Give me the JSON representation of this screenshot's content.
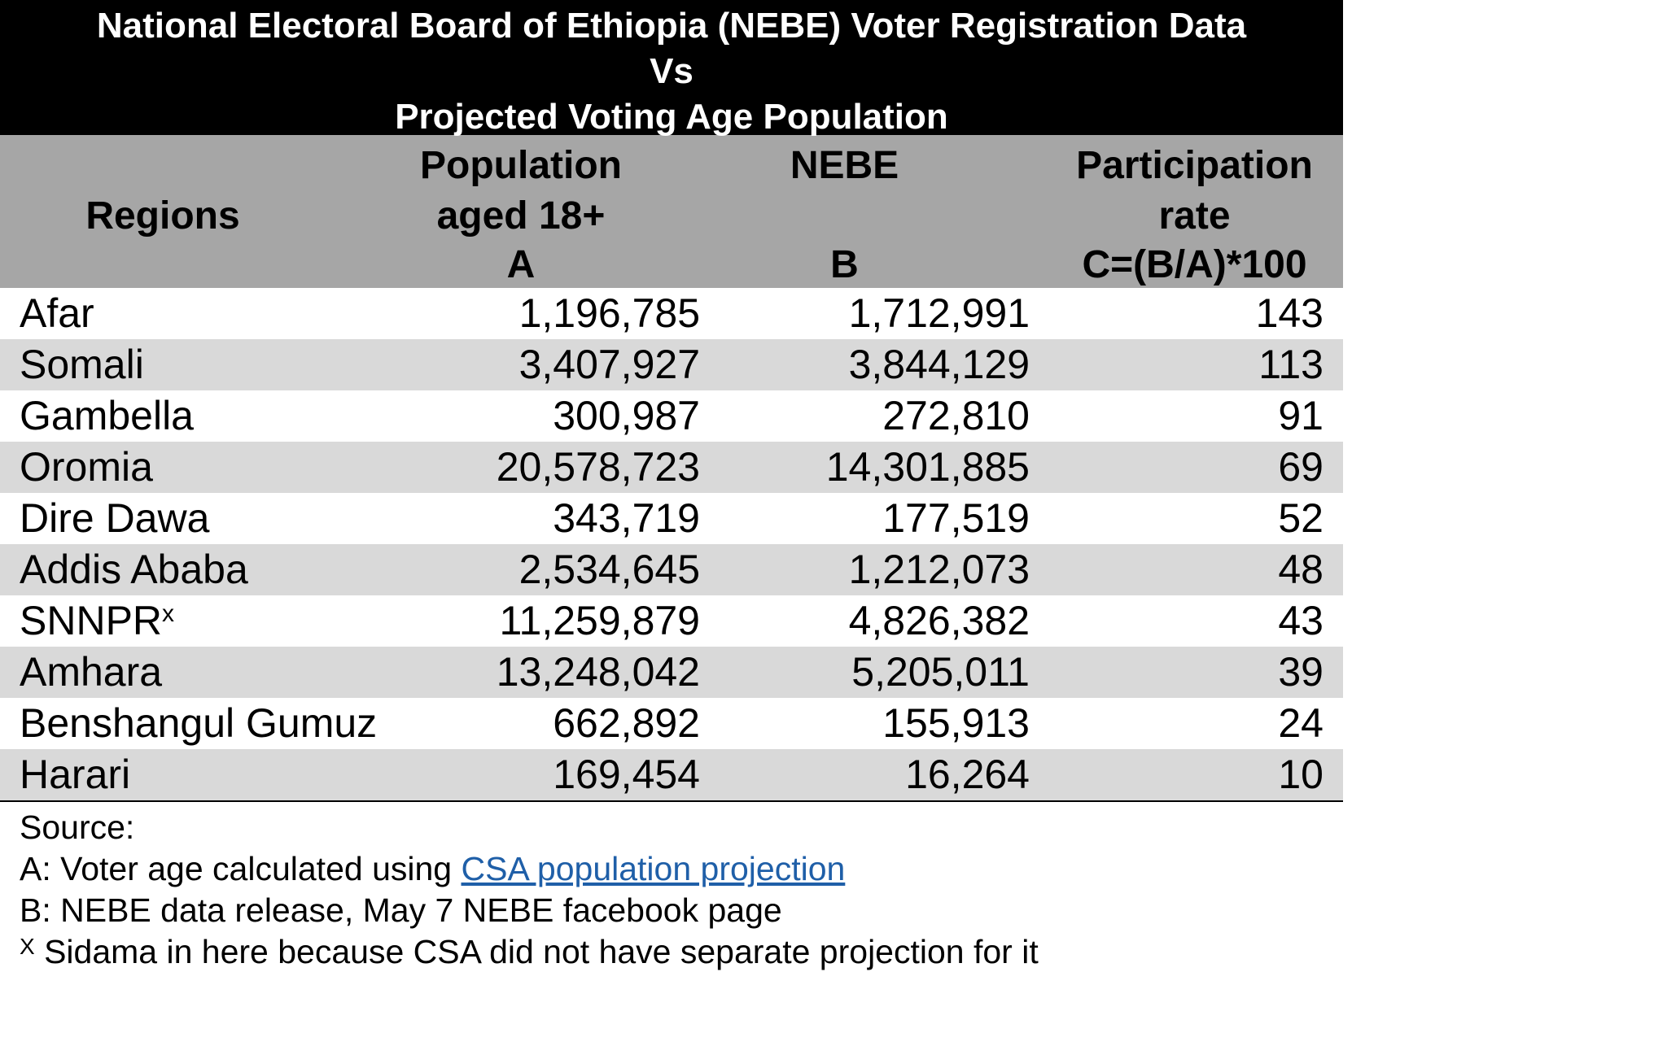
{
  "title": {
    "line1": "National Electoral Board of Ethiopia (NEBE) Voter Registration Data",
    "line2": "Vs",
    "line3": "Projected Voting Age Population"
  },
  "headers": {
    "regions": "Regions",
    "population": {
      "line1": "Population",
      "line2": "aged 18+",
      "line3": "A"
    },
    "nebe": {
      "line1": "NEBE",
      "line2": "",
      "line3": "B"
    },
    "participation": {
      "line1": "Participation",
      "line2": "rate",
      "line3": "C=(B/A)*100"
    }
  },
  "rows": [
    {
      "region": "Afar",
      "marker": "",
      "population": "1,196,785",
      "nebe": "1,712,991",
      "rate": "143"
    },
    {
      "region": "Somali",
      "marker": "",
      "population": "3,407,927",
      "nebe": "3,844,129",
      "rate": "113"
    },
    {
      "region": "Gambella",
      "marker": "",
      "population": "300,987",
      "nebe": "272,810",
      "rate": "91"
    },
    {
      "region": "Oromia",
      "marker": "",
      "population": "20,578,723",
      "nebe": "14,301,885",
      "rate": "69"
    },
    {
      "region": "Dire Dawa",
      "marker": "",
      "population": "343,719",
      "nebe": "177,519",
      "rate": "52"
    },
    {
      "region": "Addis Ababa",
      "marker": "",
      "population": "2,534,645",
      "nebe": "1,212,073",
      "rate": "48"
    },
    {
      "region": "SNNPR",
      "marker": "x",
      "population": "11,259,879",
      "nebe": "4,826,382",
      "rate": "43"
    },
    {
      "region": "Amhara",
      "marker": "",
      "population": "13,248,042",
      "nebe": "5,205,011",
      "rate": "39"
    },
    {
      "region": "Benshangul Gumuz",
      "marker": "",
      "population": "662,892",
      "nebe": "155,913",
      "rate": "24"
    },
    {
      "region": "Harari",
      "marker": "",
      "population": "169,454",
      "nebe": "16,264",
      "rate": "10"
    }
  ],
  "notes": {
    "source_label": "Source:",
    "a_prefix": "A: Voter age calculated using ",
    "a_link": "CSA population projection",
    "b_text": "B: NEBE data release, May 7 NEBE facebook page",
    "footnote_marker": "X",
    "footnote_text": " Sidama in here because CSA did not have separate projection for it"
  },
  "colors": {
    "title_bg": "#000000",
    "header_bg": "#a6a6a6",
    "row_alt_bg": "#d9d9d9",
    "link": "#1f5fa8"
  }
}
